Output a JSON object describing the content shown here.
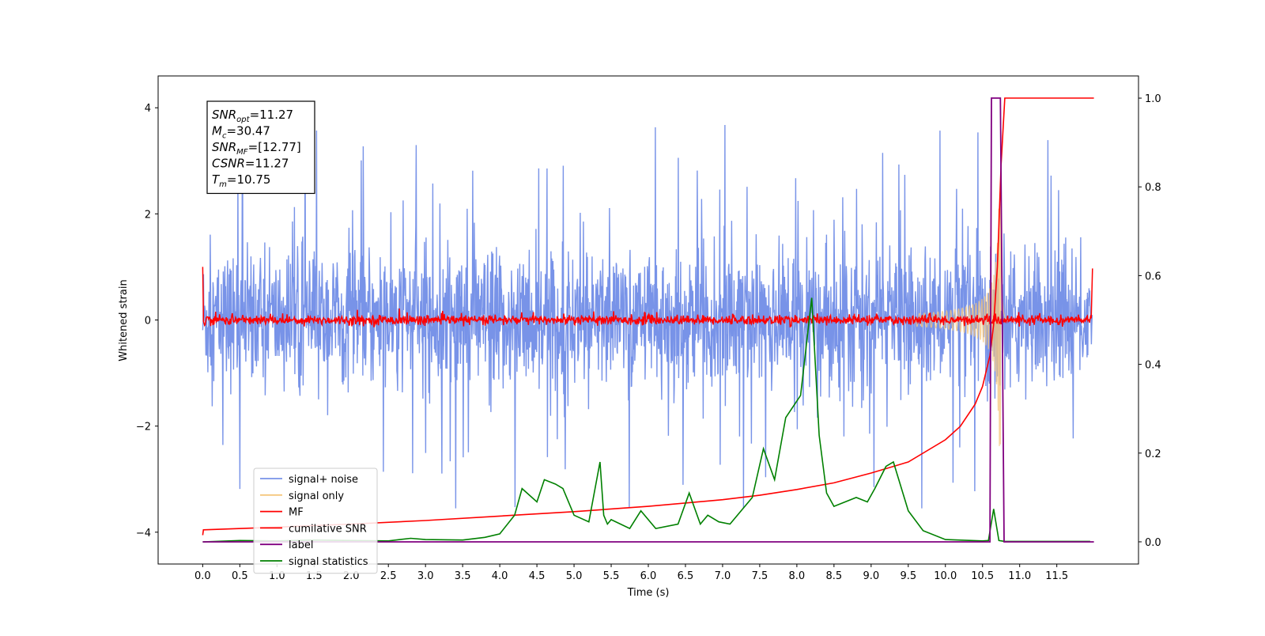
{
  "chart_data": {
    "type": "line",
    "xlabel": "Time (s)",
    "ylabel": "Whitened strain",
    "xlim": [
      -0.6,
      12.6
    ],
    "ylim": [
      -4.6,
      4.6
    ],
    "ylim_right": [
      -0.05,
      1.05
    ],
    "x_ticks": [
      0.0,
      0.5,
      1.0,
      1.5,
      2.0,
      2.5,
      3.0,
      3.5,
      4.0,
      4.5,
      5.0,
      5.5,
      6.0,
      6.5,
      7.0,
      7.5,
      8.0,
      8.5,
      9.0,
      9.5,
      10.0,
      10.5,
      11.0,
      11.5
    ],
    "x_tick_labels": [
      "0.0",
      "0.5",
      "1.0",
      "1.5",
      "2.0",
      "2.5",
      "3.0",
      "3.5",
      "4.0",
      "4.5",
      "5.0",
      "5.5",
      "6.0",
      "6.5",
      "7.0",
      "7.5",
      "8.0",
      "8.5",
      "9.0",
      "9.5",
      "10.0",
      "10.5",
      "11.0",
      "11.5"
    ],
    "y_ticks": [
      -4,
      -2,
      0,
      2,
      4
    ],
    "y_tick_labels": [
      "−4",
      "−2",
      "0",
      "2",
      "4"
    ],
    "y_ticks_right": [
      0.0,
      0.2,
      0.4,
      0.6,
      0.8,
      1.0
    ],
    "y_tick_labels_right": [
      "0.0",
      "0.2",
      "0.4",
      "0.6",
      "0.8",
      "1.0"
    ],
    "grid": false,
    "legend_position": "lower-left",
    "annotation": {
      "lines": [
        {
          "base": "SNR",
          "sub": "opt",
          "rest": "=11.27"
        },
        {
          "base": "M",
          "sub": "c",
          "rest": "=30.47"
        },
        {
          "base": "SNR",
          "sub": "MF",
          "rest": "=[12.77]"
        },
        {
          "base": "CSNR",
          "sub": "",
          "rest": "=11.27"
        },
        {
          "base": "T",
          "sub": "m",
          "rest": "=10.75"
        }
      ]
    },
    "series": [
      {
        "name": "signal+ noise",
        "color": "#7893e8",
        "axis": "left",
        "kind": "noise",
        "envelope_max": 4.17,
        "envelope_min": -3.55
      },
      {
        "name": "signal only",
        "color": "#f5c77e",
        "axis": "left",
        "kind": "chirp",
        "merger_time": 10.75,
        "peak_amplitude": 2.4
      },
      {
        "name": "MF",
        "color": "#ff0000",
        "axis": "left",
        "kind": "mf_noise",
        "start_value": 1.0,
        "end_value": 0.97
      },
      {
        "name": "cumilative SNR",
        "color": "#ff0000",
        "axis": "right",
        "x": [
          0.0,
          0.01,
          1.0,
          2.0,
          3.0,
          4.0,
          5.0,
          6.0,
          7.0,
          7.5,
          8.0,
          8.5,
          9.0,
          9.5,
          10.0,
          10.2,
          10.4,
          10.5,
          10.6,
          10.65,
          10.7,
          10.75,
          10.8,
          12.0
        ],
        "values": [
          0.015,
          0.027,
          0.033,
          0.04,
          0.048,
          0.058,
          0.068,
          0.08,
          0.095,
          0.105,
          0.118,
          0.133,
          0.155,
          0.18,
          0.23,
          0.26,
          0.31,
          0.35,
          0.42,
          0.49,
          0.62,
          0.85,
          1.0,
          1.0
        ]
      },
      {
        "name": "label",
        "color": "#800080",
        "axis": "right",
        "x": [
          0.0,
          10.6,
          10.62,
          10.74,
          10.79,
          12.0
        ],
        "values": [
          0.0,
          0.0,
          1.0,
          1.0,
          0.0,
          0.0
        ]
      },
      {
        "name": "signal statistics",
        "color": "#008000",
        "axis": "right",
        "x": [
          0.0,
          0.5,
          1.0,
          1.5,
          2.0,
          2.5,
          2.8,
          3.0,
          3.5,
          3.8,
          4.0,
          4.2,
          4.3,
          4.5,
          4.6,
          4.75,
          4.85,
          5.0,
          5.2,
          5.35,
          5.4,
          5.45,
          5.5,
          5.75,
          5.9,
          6.1,
          6.4,
          6.55,
          6.7,
          6.8,
          6.95,
          7.1,
          7.4,
          7.55,
          7.7,
          7.85,
          8.05,
          8.2,
          8.3,
          8.4,
          8.5,
          8.65,
          8.8,
          8.95,
          9.05,
          9.2,
          9.3,
          9.5,
          9.7,
          10.0,
          10.5,
          10.58,
          10.65,
          10.72,
          10.8,
          11.0,
          11.5,
          11.95
        ],
        "values": [
          0.0,
          0.003,
          0.002,
          0.004,
          0.003,
          0.002,
          0.008,
          0.005,
          0.004,
          0.01,
          0.018,
          0.06,
          0.12,
          0.09,
          0.14,
          0.13,
          0.12,
          0.06,
          0.045,
          0.18,
          0.06,
          0.04,
          0.05,
          0.03,
          0.07,
          0.03,
          0.04,
          0.11,
          0.04,
          0.06,
          0.045,
          0.04,
          0.1,
          0.21,
          0.14,
          0.28,
          0.33,
          0.55,
          0.24,
          0.11,
          0.08,
          0.09,
          0.1,
          0.09,
          0.12,
          0.17,
          0.18,
          0.07,
          0.025,
          0.005,
          0.002,
          0.003,
          0.074,
          0.003,
          0.001,
          0.001,
          0.001,
          0.001
        ]
      }
    ]
  }
}
